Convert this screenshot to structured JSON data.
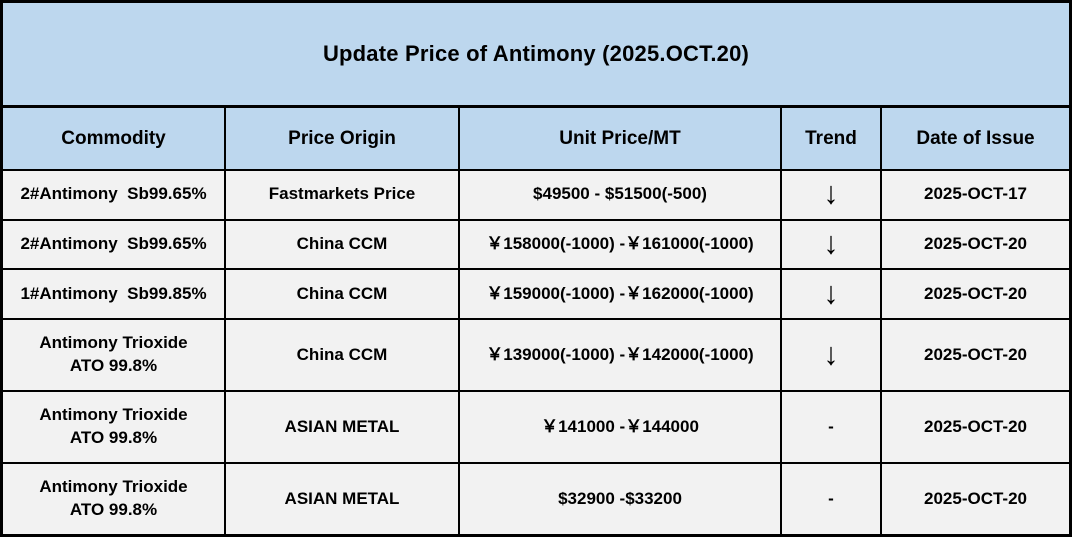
{
  "title": "Update Price of Antimony (2025.OCT.20)",
  "colors": {
    "header_bg": "#BDD7EE",
    "row_bg": "#F2F2F2",
    "border": "#000000",
    "text": "#000000"
  },
  "table": {
    "columns": [
      {
        "label": "Commodity"
      },
      {
        "label": "Price Origin"
      },
      {
        "label": "Unit Price/MT"
      },
      {
        "label": "Trend"
      },
      {
        "label": "Date of Issue"
      }
    ],
    "rows": [
      {
        "commodity": "2#Antimony  Sb99.65%",
        "origin": "Fastmarkets Price",
        "price": "$49500 - $51500(-500)",
        "trend": "↓",
        "date": "2025-OCT-17"
      },
      {
        "commodity": "2#Antimony  Sb99.65%",
        "origin": "China CCM",
        "price": "￥158000(-1000) -￥161000(-1000)",
        "trend": "↓",
        "date": "2025-OCT-20"
      },
      {
        "commodity": "1#Antimony  Sb99.85%",
        "origin": "China CCM",
        "price": "￥159000(-1000) -￥162000(-1000)",
        "trend": "↓",
        "date": "2025-OCT-20"
      },
      {
        "commodity": "Antimony Trioxide\nATO 99.8%",
        "origin": "China CCM",
        "price": "￥139000(-1000) -￥142000(-1000)",
        "trend": "↓",
        "date": "2025-OCT-20"
      },
      {
        "commodity": "Antimony Trioxide\nATO 99.8%",
        "origin": "ASIAN METAL",
        "price": "￥141000 -￥144000",
        "trend": "-",
        "date": "2025-OCT-20"
      },
      {
        "commodity": "Antimony Trioxide\nATO 99.8%",
        "origin": "ASIAN METAL",
        "price": "$32900 -$33200",
        "trend": "-",
        "date": "2025-OCT-20"
      }
    ]
  }
}
